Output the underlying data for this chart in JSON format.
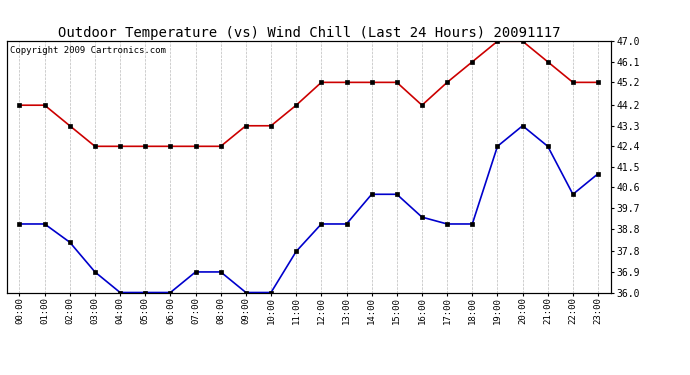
{
  "title": "Outdoor Temperature (vs) Wind Chill (Last 24 Hours) 20091117",
  "copyright": "Copyright 2009 Cartronics.com",
  "hours": [
    "00:00",
    "01:00",
    "02:00",
    "03:00",
    "04:00",
    "05:00",
    "06:00",
    "07:00",
    "08:00",
    "09:00",
    "10:00",
    "11:00",
    "12:00",
    "13:00",
    "14:00",
    "15:00",
    "16:00",
    "17:00",
    "18:00",
    "19:00",
    "20:00",
    "21:00",
    "22:00",
    "23:00"
  ],
  "red_data": [
    44.2,
    44.2,
    43.3,
    42.4,
    42.4,
    42.4,
    42.4,
    42.4,
    42.4,
    43.3,
    43.3,
    44.2,
    45.2,
    45.2,
    45.2,
    45.2,
    44.2,
    45.2,
    46.1,
    47.0,
    47.0,
    46.1,
    45.2,
    45.2
  ],
  "blue_data": [
    39.0,
    39.0,
    38.2,
    36.9,
    36.0,
    36.0,
    36.0,
    36.9,
    36.9,
    36.0,
    36.0,
    37.8,
    39.0,
    39.0,
    40.3,
    40.3,
    39.3,
    39.0,
    39.0,
    42.4,
    43.3,
    42.4,
    40.3,
    41.2
  ],
  "ymin": 36.0,
  "ymax": 47.0,
  "yticks_right": [
    36.0,
    36.9,
    37.8,
    38.8,
    39.7,
    40.6,
    41.5,
    42.4,
    43.3,
    44.2,
    45.2,
    46.1,
    47.0
  ],
  "red_color": "#cc0000",
  "blue_color": "#0000cc",
  "bg_color": "#ffffff",
  "grid_color": "#bbbbbb",
  "title_fontsize": 10,
  "copyright_fontsize": 6.5
}
